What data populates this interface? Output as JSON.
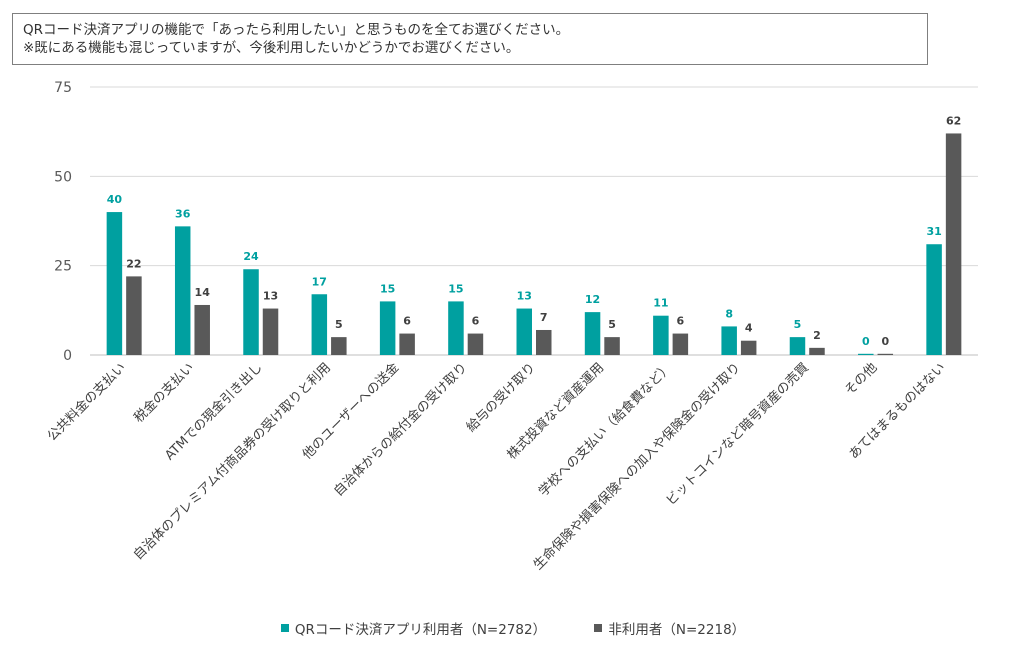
{
  "question": {
    "line1": "QRコード決済アプリの機能で「あったら利用したい」と思うものを全てお選びください。",
    "line2": "※既にある機能も混じっていますが、今後利用したいかどうかでお選びください。"
  },
  "colors": {
    "series1": "#00A0A0",
    "series2": "#595959",
    "grid": "#d9d9d9",
    "axis": "#bfbfbf"
  },
  "chart_data": {
    "type": "bar",
    "title": "",
    "xlabel": "",
    "ylabel": "",
    "ylim": [
      0,
      75
    ],
    "yticks": [
      0,
      25,
      50,
      75
    ],
    "grid": true,
    "legend_position": "bottom",
    "categories": [
      "公共料金の支払い",
      "税金の支払い",
      "ATMでの現金引き出し",
      "自治体のプレミアム付商品券の受け取りと利用",
      "他のユーザーへの送金",
      "自治体からの給付金の受け取り",
      "給与の受け取り",
      "株式投資など資産運用",
      "学校への支払い（給食費など）",
      "生命保険や損害保険への加入や保険金の受け取り",
      "ビットコインなど暗号資産の売買",
      "その他",
      "あてはまるものはない"
    ],
    "series": [
      {
        "name": "QRコード決済アプリ利用者（N=2782）",
        "values": [
          40,
          36,
          24,
          17,
          15,
          15,
          13,
          12,
          11,
          8,
          5,
          0,
          31
        ]
      },
      {
        "name": "非利用者（N=2218）",
        "values": [
          22,
          14,
          13,
          5,
          6,
          6,
          7,
          5,
          6,
          4,
          2,
          0,
          62
        ]
      }
    ]
  }
}
